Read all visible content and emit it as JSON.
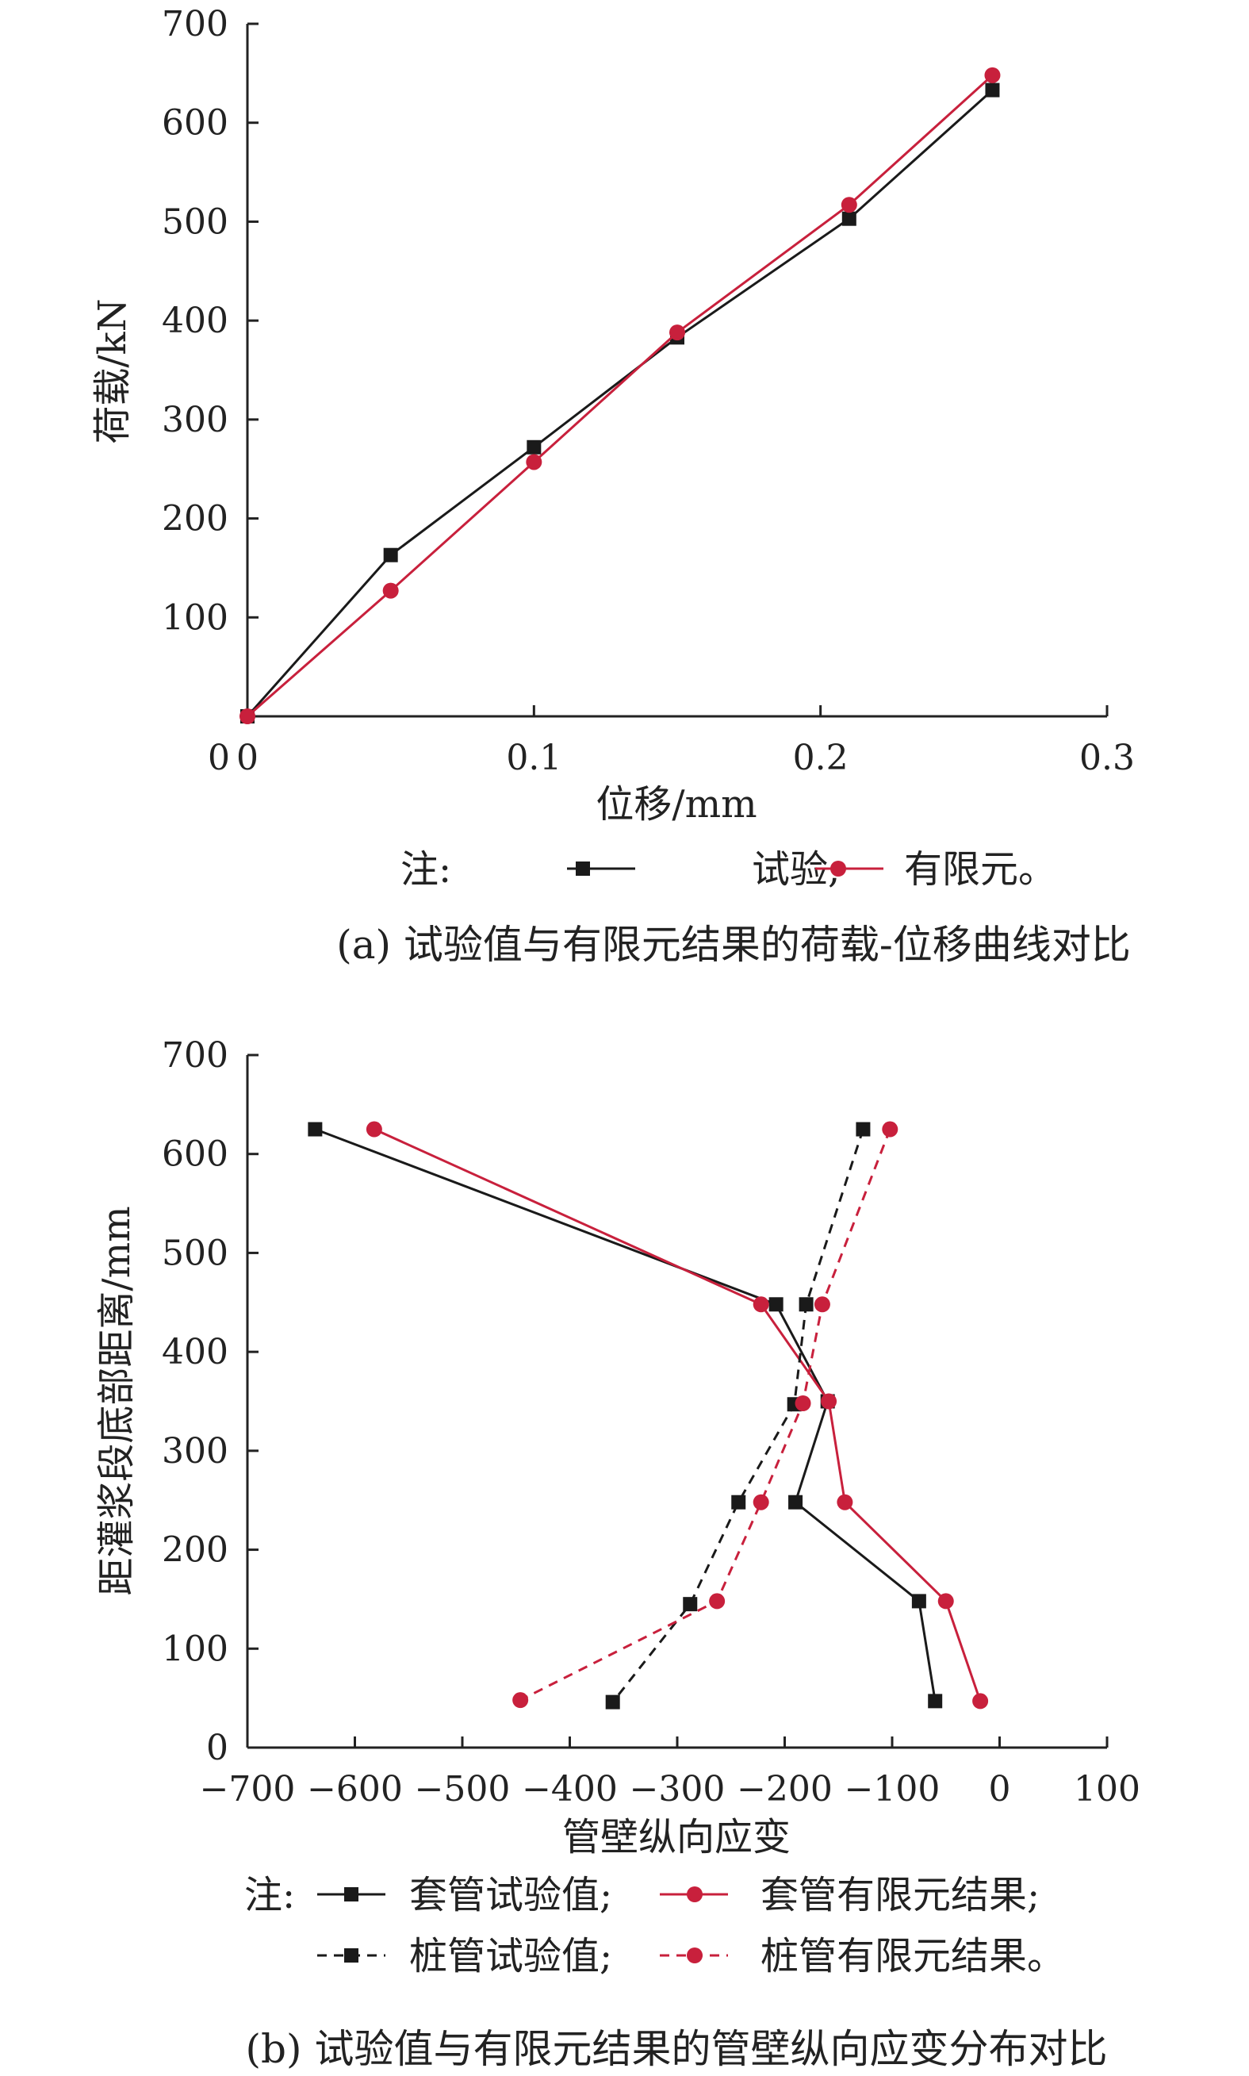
{
  "chart_data": [
    {
      "type": "line",
      "caption": "(a) 试验值与有限元结果的荷载-位移曲线对比",
      "xlabel": "位移/mm",
      "ylabel": "荷载/kN",
      "xlim": [
        0,
        0.3
      ],
      "ylim": [
        0,
        700
      ],
      "xticks": [
        0,
        0.1,
        0.2,
        0.3
      ],
      "xtick_labels": [
        "0",
        "0.1",
        "0.2",
        "0.3"
      ],
      "yticks": [
        100,
        200,
        300,
        400,
        500,
        600,
        700
      ],
      "ytick_labels": [
        "100",
        "200",
        "300",
        "400",
        "500",
        "600",
        "700"
      ],
      "origin_label": "0",
      "note_prefix": "注:",
      "series": [
        {
          "name": "试验",
          "legend_label": "试验;",
          "color": "#1a1a1a",
          "marker": "square",
          "dashed": false,
          "x": [
            0,
            0.05,
            0.1,
            0.15,
            0.21,
            0.26
          ],
          "y": [
            0,
            163,
            272,
            383,
            503,
            633
          ]
        },
        {
          "name": "有限元",
          "legend_label": "有限元。",
          "color": "#c8203c",
          "marker": "circle",
          "dashed": false,
          "x": [
            0,
            0.05,
            0.1,
            0.15,
            0.21,
            0.26
          ],
          "y": [
            0,
            127,
            257,
            388,
            517,
            648
          ]
        }
      ]
    },
    {
      "type": "line",
      "caption": "(b) 试验值与有限元结果的管壁纵向应变分布对比",
      "xlabel": "管壁纵向应变",
      "ylabel": "距灌浆段底部距离/mm",
      "xlim": [
        -700,
        100
      ],
      "ylim": [
        0,
        700
      ],
      "xticks": [
        -700,
        -600,
        -500,
        -400,
        -300,
        -200,
        -100,
        0,
        100
      ],
      "xtick_labels": [
        "−700",
        "−600",
        "−500",
        "−400",
        "−300",
        "−200",
        "−100",
        "0",
        "100"
      ],
      "yticks": [
        0,
        100,
        200,
        300,
        400,
        500,
        600,
        700
      ],
      "ytick_labels": [
        "0",
        "100",
        "200",
        "300",
        "400",
        "500",
        "600",
        "700"
      ],
      "note_prefix": "注:",
      "series": [
        {
          "name": "套管试验值",
          "legend_label": "套管试验值;",
          "color": "#1a1a1a",
          "marker": "square",
          "dashed": false,
          "x": [
            -637,
            -208,
            -160,
            -190,
            -75,
            -60
          ],
          "y": [
            625,
            448,
            350,
            248,
            148,
            47
          ]
        },
        {
          "name": "套管有限元结果",
          "legend_label": "套管有限元结果;",
          "color": "#c8203c",
          "marker": "circle",
          "dashed": false,
          "x": [
            -582,
            -222,
            -159,
            -144,
            -50,
            -18
          ],
          "y": [
            625,
            448,
            350,
            248,
            148,
            47
          ]
        },
        {
          "name": "桩管试验值",
          "legend_label": "桩管试验值;",
          "color": "#1a1a1a",
          "marker": "square",
          "dashed": true,
          "x": [
            -127,
            -180,
            -191,
            -243,
            -288,
            -360
          ],
          "y": [
            625,
            448,
            347,
            248,
            145,
            46
          ]
        },
        {
          "name": "桩管有限元结果",
          "legend_label": "桩管有限元结果。",
          "color": "#c8203c",
          "marker": "circle",
          "dashed": true,
          "x": [
            -102,
            -165,
            -183,
            -222,
            -263,
            -446
          ],
          "y": [
            625,
            448,
            348,
            248,
            148,
            48
          ]
        }
      ]
    }
  ]
}
